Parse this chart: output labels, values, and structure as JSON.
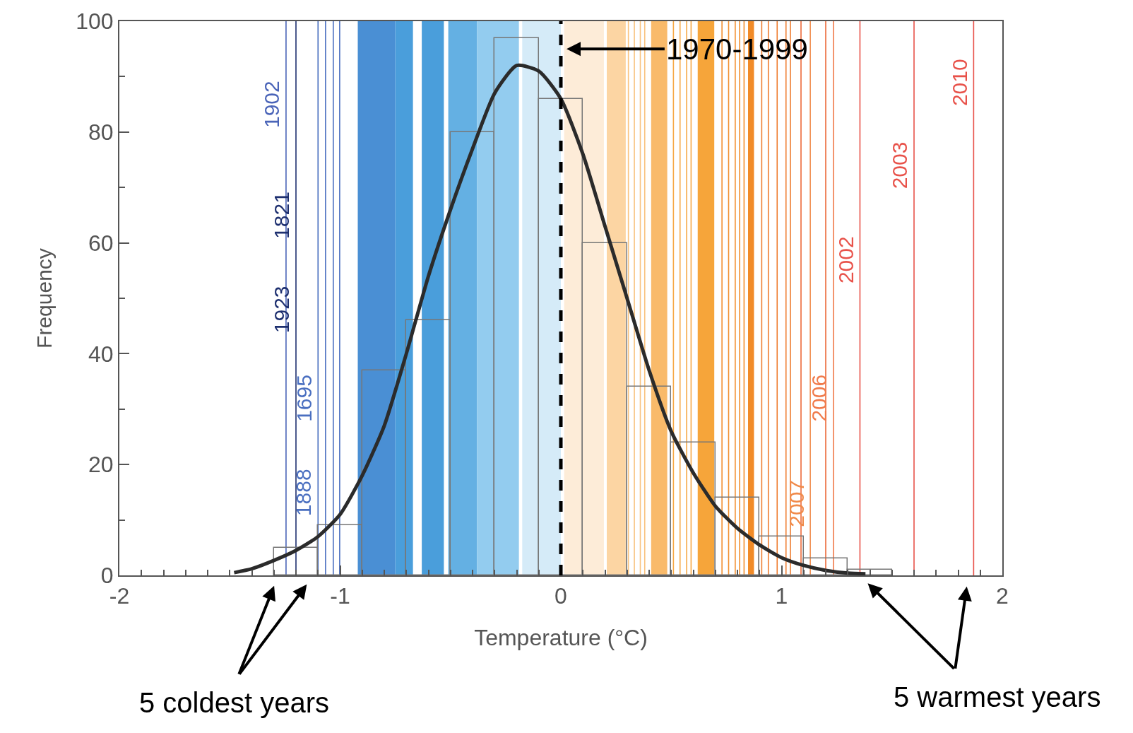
{
  "chart_data": {
    "type": "histogram",
    "xlabel": "Temperature (°C)",
    "ylabel": "Frequency",
    "bins": [
      -1.3,
      -1.1,
      -0.9,
      -0.7,
      -0.5,
      -0.3,
      -0.1,
      0.1,
      0.3,
      0.5,
      0.7,
      0.9,
      1.1,
      1.3,
      1.5
    ],
    "values": [
      5,
      9,
      37,
      46,
      80,
      97,
      86,
      60,
      34,
      24,
      14,
      7,
      3,
      1
    ],
    "color": "#777777",
    "series": [
      {
        "type": "line",
        "color": "#2b2b2b",
        "x": [
          -1.48,
          -1.4,
          -1.3,
          -1.2,
          -1.1,
          -1.0,
          -0.9,
          -0.8,
          -0.7,
          -0.6,
          -0.5,
          -0.4,
          -0.3,
          -0.2,
          -0.1,
          0,
          0.1,
          0.2,
          0.3,
          0.4,
          0.5,
          0.6,
          0.7,
          0.8,
          0.9,
          1.0,
          1.1,
          1.2,
          1.3,
          1.38
        ],
        "values": [
          0.5,
          1.2,
          2.7,
          4.5,
          7,
          11,
          18,
          27,
          40,
          54,
          66,
          77,
          87,
          92,
          91,
          86,
          76,
          63,
          50,
          37,
          26,
          18.5,
          12.5,
          8.5,
          5.5,
          3.2,
          1.8,
          0.9,
          0.4,
          0.3
        ]
      }
    ],
    "xlim": [
      -2,
      2
    ],
    "xticks": [
      -2,
      {
        "value": -1.9,
        "label": null
      },
      {
        "value": -1.8,
        "label": null
      },
      {
        "value": -1.7,
        "label": null
      },
      {
        "value": -1.6,
        "label": null
      },
      {
        "value": -1.5,
        "label": null
      },
      {
        "value": -1.4,
        "label": null
      },
      {
        "value": -1.3,
        "label": null
      },
      {
        "value": -1.2,
        "label": null
      },
      {
        "value": -1.1,
        "label": null
      },
      -1,
      {
        "value": -0.9,
        "label": null
      },
      {
        "value": -0.8,
        "label": null
      },
      {
        "value": -0.7,
        "label": null
      },
      {
        "value": -0.6,
        "label": null
      },
      {
        "value": -0.5,
        "label": null
      },
      {
        "value": -0.4,
        "label": null
      },
      {
        "value": -0.3,
        "label": null
      },
      {
        "value": -0.2,
        "label": null
      },
      {
        "value": -0.1,
        "label": null
      },
      0,
      {
        "value": 0.1,
        "label": null
      },
      {
        "value": 0.2,
        "label": null
      },
      {
        "value": 0.3,
        "label": null
      },
      {
        "value": 0.4,
        "label": null
      },
      {
        "value": 0.5,
        "label": null
      },
      {
        "value": 0.6,
        "label": null
      },
      {
        "value": 0.7,
        "label": null
      },
      {
        "value": 0.8,
        "label": null
      },
      {
        "value": 0.9,
        "label": null
      },
      1,
      {
        "value": 1.1,
        "label": null
      },
      {
        "value": 1.2,
        "label": null
      },
      {
        "value": 1.3,
        "label": null
      },
      {
        "value": 1.4,
        "label": null
      },
      {
        "value": 1.5,
        "label": null
      },
      {
        "value": 1.6,
        "label": null
      },
      {
        "value": 1.7,
        "label": null
      },
      {
        "value": 1.8,
        "label": null
      },
      {
        "value": 1.9,
        "label": null
      },
      2
    ],
    "ylim": [
      0,
      100
    ],
    "yticks": [
      0,
      {
        "value": 10,
        "label": null
      },
      20,
      {
        "value": 30,
        "label": null
      },
      40,
      {
        "value": 50,
        "label": null
      },
      60,
      {
        "value": 70,
        "label": null
      },
      80,
      {
        "value": 90,
        "label": null
      },
      100
    ],
    "grid": false,
    "bands": [
      {
        "axis": "x",
        "from": -0.92,
        "to": -0.75,
        "color": "#4a8fd4"
      },
      {
        "axis": "x",
        "from": -0.75,
        "to": -0.67,
        "color": "#4a9edb"
      },
      {
        "axis": "x",
        "from": -0.63,
        "to": -0.53,
        "color": "#4a9edb"
      },
      {
        "axis": "x",
        "from": -0.51,
        "to": -0.38,
        "color": "#64b0e3"
      },
      {
        "axis": "x",
        "from": -0.38,
        "to": -0.19,
        "color": "#93ccef"
      },
      {
        "axis": "x",
        "from": -0.175,
        "to": 0,
        "color": "#d5ebf8"
      },
      {
        "axis": "x",
        "from": 0.015,
        "to": 0.195,
        "color": "#fdecd8"
      },
      {
        "axis": "x",
        "from": 0.208,
        "to": 0.294,
        "color": "#fcd5a3"
      },
      {
        "axis": "x",
        "from": 0.409,
        "to": 0.482,
        "color": "#f9ba6a"
      },
      {
        "axis": "x",
        "from": 0.62,
        "to": 0.695,
        "color": "#f6a53a"
      },
      {
        "axis": "x",
        "from": 0.848,
        "to": 0.875,
        "color": "#f18b28"
      }
    ],
    "ref_lines": [
      {
        "axis": "x",
        "value": -1.245,
        "color": "#4a64b8",
        "line_style": "solid"
      },
      {
        "axis": "x",
        "value": -1.2,
        "color": "#1d2f6f",
        "line_style": "solid"
      },
      {
        "axis": "x",
        "value": -1.1,
        "color": "#4a6fc0",
        "line_style": "solid"
      },
      {
        "axis": "x",
        "value": -1.066,
        "color": "#4a6fc0",
        "line_style": "solid"
      },
      {
        "axis": "x",
        "value": -1.031,
        "color": "#4a6fc0",
        "line_style": "solid"
      },
      {
        "axis": "x",
        "value": -1.002,
        "color": "#4a6fc0",
        "line_style": "solid"
      },
      {
        "axis": "x",
        "value": 0.306,
        "color": "#f9c27e",
        "line_style": "solid"
      },
      {
        "axis": "x",
        "value": 0.333,
        "color": "#f9c27e",
        "line_style": "solid"
      },
      {
        "axis": "x",
        "value": 0.36,
        "color": "#f9c27e",
        "line_style": "solid"
      },
      {
        "axis": "x",
        "value": 0.38,
        "color": "#f9c27e",
        "line_style": "solid"
      },
      {
        "axis": "x",
        "value": 0.51,
        "color": "#f6a845",
        "line_style": "solid"
      },
      {
        "axis": "x",
        "value": 0.54,
        "color": "#f6a845",
        "line_style": "solid"
      },
      {
        "axis": "x",
        "value": 0.57,
        "color": "#f6a845",
        "line_style": "solid"
      },
      {
        "axis": "x",
        "value": 0.59,
        "color": "#f6a845",
        "line_style": "solid"
      },
      {
        "axis": "x",
        "value": 0.73,
        "color": "#f29030",
        "line_style": "solid"
      },
      {
        "axis": "x",
        "value": 0.76,
        "color": "#f29030",
        "line_style": "solid"
      },
      {
        "axis": "x",
        "value": 0.79,
        "color": "#f29030",
        "line_style": "solid"
      },
      {
        "axis": "x",
        "value": 0.81,
        "color": "#f29030",
        "line_style": "solid"
      },
      {
        "axis": "x",
        "value": 0.83,
        "color": "#f29030",
        "line_style": "solid"
      },
      {
        "axis": "x",
        "value": 0.91,
        "color": "#ee7d30",
        "line_style": "solid"
      },
      {
        "axis": "x",
        "value": 0.94,
        "color": "#ee7d30",
        "line_style": "solid"
      },
      {
        "axis": "x",
        "value": 0.98,
        "color": "#ee7d30",
        "line_style": "solid"
      },
      {
        "axis": "x",
        "value": 1.02,
        "color": "#ee7d30",
        "line_style": "solid"
      },
      {
        "axis": "x",
        "value": 1.04,
        "color": "#ee7d30",
        "line_style": "solid"
      },
      {
        "axis": "x",
        "value": 1.088,
        "color": "#ec6a3a",
        "line_style": "solid"
      },
      {
        "axis": "x",
        "value": 1.13,
        "color": "#f08a4a",
        "line_style": "solid"
      },
      {
        "axis": "x",
        "value": 1.2,
        "color": "#ec6a3a",
        "line_style": "solid"
      },
      {
        "axis": "x",
        "value": 1.235,
        "color": "#f07a4a",
        "line_style": "solid"
      },
      {
        "axis": "x",
        "value": 1.355,
        "color": "#e8524a",
        "line_style": "solid"
      },
      {
        "axis": "x",
        "value": 1.6,
        "color": "#e8524a",
        "line_style": "solid"
      },
      {
        "axis": "x",
        "value": 1.87,
        "color": "#e8524a",
        "line_style": "solid"
      },
      {
        "axis": "x",
        "value": 0,
        "color": "#000000",
        "line_style": "dashed"
      }
    ],
    "annotations": [
      {
        "text": "1902",
        "x": -1.245,
        "y": 85
      },
      {
        "text": "1821",
        "x": -1.2,
        "y": 65
      },
      {
        "text": "1923",
        "x": -1.2,
        "y": 48
      },
      {
        "text": "1695",
        "x": -1.1,
        "y": 32
      },
      {
        "text": "1888",
        "x": -1.1,
        "y": 15
      },
      {
        "text": "2007",
        "x": 1.13,
        "y": 13
      },
      {
        "text": "2006",
        "x": 1.235,
        "y": 32
      },
      {
        "text": "2002",
        "x": 1.355,
        "y": 57
      },
      {
        "text": "2003",
        "x": 1.6,
        "y": 74
      },
      {
        "text": "2010",
        "x": 1.87,
        "y": 89
      },
      {
        "text": "1970-1999",
        "x": 0,
        "y": 95
      },
      "5 coldest years",
      "5 warmest years"
    ]
  }
}
